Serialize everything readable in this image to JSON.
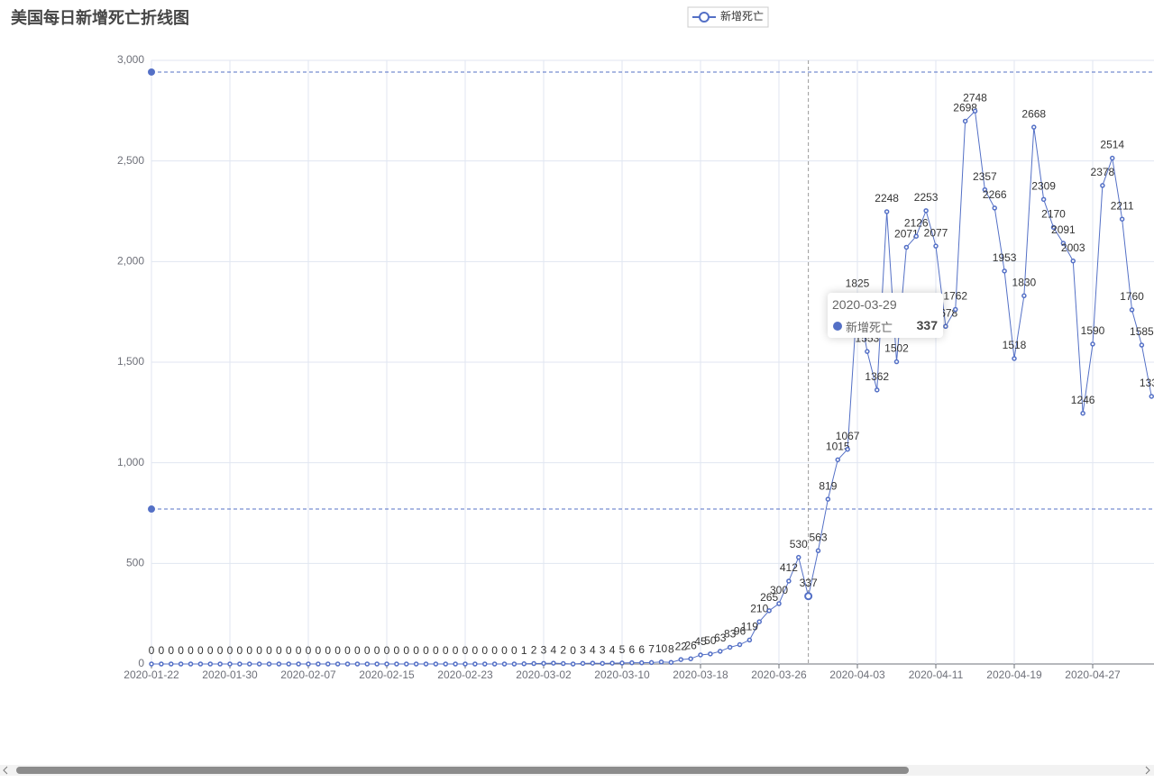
{
  "chart_data": {
    "type": "line",
    "title": "美国每日新增死亡折线图",
    "categories": [
      "2020-01-22",
      "2020-01-23",
      "2020-01-24",
      "2020-01-25",
      "2020-01-26",
      "2020-01-27",
      "2020-01-28",
      "2020-01-29",
      "2020-01-30",
      "2020-01-31",
      "2020-02-01",
      "2020-02-02",
      "2020-02-03",
      "2020-02-04",
      "2020-02-05",
      "2020-02-06",
      "2020-02-07",
      "2020-02-08",
      "2020-02-09",
      "2020-02-10",
      "2020-02-11",
      "2020-02-12",
      "2020-02-13",
      "2020-02-14",
      "2020-02-15",
      "2020-02-16",
      "2020-02-17",
      "2020-02-18",
      "2020-02-19",
      "2020-02-20",
      "2020-02-21",
      "2020-02-22",
      "2020-02-23",
      "2020-02-24",
      "2020-02-25",
      "2020-02-26",
      "2020-02-27",
      "2020-02-28",
      "2020-02-29",
      "2020-03-01",
      "2020-03-02",
      "2020-03-03",
      "2020-03-04",
      "2020-03-05",
      "2020-03-06",
      "2020-03-07",
      "2020-03-08",
      "2020-03-09",
      "2020-03-10",
      "2020-03-11",
      "2020-03-12",
      "2020-03-13",
      "2020-03-14",
      "2020-03-15",
      "2020-03-16",
      "2020-03-17",
      "2020-03-18",
      "2020-03-19",
      "2020-03-20",
      "2020-03-21",
      "2020-03-22",
      "2020-03-23",
      "2020-03-24",
      "2020-03-25",
      "2020-03-26",
      "2020-03-27",
      "2020-03-28",
      "2020-03-29",
      "2020-03-30",
      "2020-03-31",
      "2020-04-01",
      "2020-04-02",
      "2020-04-03",
      "2020-04-04",
      "2020-04-05",
      "2020-04-06",
      "2020-04-07",
      "2020-04-08",
      "2020-04-09",
      "2020-04-10",
      "2020-04-11",
      "2020-04-12",
      "2020-04-13",
      "2020-04-14",
      "2020-04-15",
      "2020-04-16",
      "2020-04-17",
      "2020-04-18",
      "2020-04-19",
      "2020-04-20",
      "2020-04-21",
      "2020-04-22",
      "2020-04-23",
      "2020-04-24",
      "2020-04-25",
      "2020-04-26",
      "2020-04-27",
      "2020-04-28",
      "2020-04-29",
      "2020-04-30",
      "2020-05-01",
      "2020-05-02",
      "2020-05-03"
    ],
    "series": [
      {
        "name": "新增死亡",
        "color": "#5470c6",
        "values": [
          0,
          0,
          0,
          0,
          0,
          0,
          0,
          0,
          0,
          0,
          0,
          0,
          0,
          0,
          0,
          0,
          0,
          0,
          0,
          0,
          0,
          0,
          0,
          0,
          0,
          0,
          0,
          0,
          0,
          0,
          0,
          0,
          0,
          0,
          0,
          0,
          0,
          0,
          1,
          2,
          3,
          4,
          2,
          0,
          3,
          4,
          3,
          4,
          5,
          6,
          6,
          7,
          10,
          8,
          22,
          26,
          45,
          50,
          63,
          83,
          96,
          119,
          210,
          265,
          300,
          412,
          530,
          337,
          563,
          819,
          1015,
          1067,
          1825,
          1553,
          1362,
          2248,
          1502,
          2071,
          2126,
          2253,
          2077,
          1678,
          1762,
          2698,
          2748,
          2357,
          2266,
          1953,
          1518,
          1830,
          2668,
          2309,
          2170,
          2091,
          2003,
          1246,
          1590,
          2378,
          2514,
          2211,
          1760,
          1585,
          1330
        ]
      }
    ],
    "mark_lines": [
      2942,
      770
    ],
    "ylim": [
      0,
      3000
    ],
    "yticks": [
      0,
      500,
      {
        "value": 1000,
        "label": "1,000"
      },
      {
        "value": 1500,
        "label": "1,500"
      },
      {
        "value": 2000,
        "label": "2,000"
      },
      {
        "value": 2500,
        "label": "2,500"
      },
      {
        "value": 3000,
        "label": "3,000"
      }
    ],
    "grid": true,
    "tooltip": {
      "index": 67
    }
  }
}
